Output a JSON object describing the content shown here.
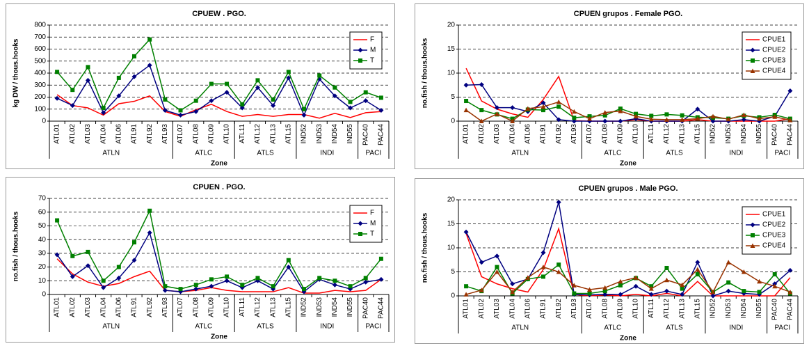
{
  "chart_data": [
    {
      "type": "line",
      "title": "CPUEW . PGO.",
      "x_label": "Zone",
      "y_label": "kg DW / thous.hooks",
      "groups": [
        {
          "name": "ATLN",
          "categories": [
            "ATL01",
            "ATL02",
            "ATL03",
            "ATL04",
            "ATL06",
            "ATL91",
            "ATL92",
            "ATL93"
          ]
        },
        {
          "name": "ATLC",
          "categories": [
            "ATL07",
            "ATL08",
            "ATL09",
            "ATL10"
          ]
        },
        {
          "name": "ATLS",
          "categories": [
            "ATL11",
            "ATL12",
            "ATL13",
            "ATL15"
          ]
        },
        {
          "name": "INDI",
          "categories": [
            "IND52",
            "IND53",
            "IND54",
            "IND55"
          ]
        },
        {
          "name": "PACI",
          "categories": [
            "PAC40",
            "PAC44"
          ]
        }
      ],
      "ylim": [
        0,
        800
      ],
      "yticks": [
        0,
        100,
        200,
        300,
        400,
        500,
        600,
        700,
        800
      ],
      "grid": true,
      "legend": "upper right",
      "series": [
        {
          "name": "F",
          "color": "#ff0000",
          "marker": "none",
          "values": [
            220,
            130,
            110,
            50,
            145,
            165,
            210,
            80,
            40,
            95,
            140,
            80,
            40,
            55,
            40,
            55,
            55,
            25,
            65,
            30,
            70,
            80
          ]
        },
        {
          "name": "M",
          "color": "#000080",
          "marker": "diamond",
          "values": [
            190,
            130,
            340,
            70,
            210,
            370,
            465,
            90,
            50,
            80,
            170,
            240,
            110,
            280,
            130,
            360,
            50,
            350,
            210,
            110,
            170,
            90
          ]
        },
        {
          "name": "T",
          "color": "#008000",
          "marker": "square",
          "values": [
            410,
            260,
            450,
            110,
            360,
            540,
            680,
            180,
            90,
            170,
            310,
            310,
            140,
            340,
            180,
            410,
            100,
            380,
            280,
            160,
            240,
            195
          ]
        }
      ]
    },
    {
      "type": "line",
      "title": "CPUEN grupos . Female PGO.",
      "x_label": "Zone",
      "y_label": "no.fish / thous.hooks",
      "groups": [
        {
          "name": "ATLN",
          "categories": [
            "ATL01",
            "ATL02",
            "ATL03",
            "ATL04",
            "ATL06",
            "ATL91",
            "ATL92",
            "ATL93"
          ]
        },
        {
          "name": "ATLC",
          "categories": [
            "ATL07",
            "ATL08",
            "ATL09",
            "ATL10"
          ]
        },
        {
          "name": "ATLS",
          "categories": [
            "ATL11",
            "ATL12",
            "ATL13",
            "ATL15"
          ]
        },
        {
          "name": "INDI",
          "categories": [
            "IND52",
            "IND53",
            "IND54",
            "IND55"
          ]
        },
        {
          "name": "PACI",
          "categories": [
            "PAC40",
            "PAC44"
          ]
        }
      ],
      "ylim": [
        0,
        20
      ],
      "yticks": [
        0,
        5,
        10,
        15,
        20
      ],
      "grid": true,
      "legend": "upper right",
      "series": [
        {
          "name": "CPUE1",
          "color": "#ff0000",
          "marker": "none",
          "values": [
            11,
            4.2,
            2.5,
            1.5,
            0.8,
            4.5,
            9.3,
            0.1,
            0,
            0,
            0,
            0.3,
            0,
            0,
            0,
            0.3,
            0,
            0,
            0,
            0,
            0,
            0.5
          ]
        },
        {
          "name": "CPUE2",
          "color": "#000080",
          "marker": "diamond",
          "values": [
            7.5,
            7.6,
            2.8,
            2.8,
            2,
            3.8,
            0.3,
            0,
            0,
            0,
            0,
            0.5,
            0,
            0,
            0,
            2.5,
            0,
            0,
            0.3,
            0,
            1,
            6.3
          ]
        },
        {
          "name": "CPUE3",
          "color": "#008000",
          "marker": "square",
          "values": [
            4.2,
            2.3,
            1.4,
            0.5,
            2.4,
            2.3,
            3,
            0.7,
            1,
            1.2,
            2.6,
            1.5,
            1.1,
            1.4,
            1.2,
            0.8,
            0.7,
            0.5,
            1.1,
            0.8,
            1.3,
            0.5
          ]
        },
        {
          "name": "CPUE4",
          "color": "#993300",
          "marker": "triangle",
          "values": [
            2.3,
            0,
            1.5,
            0,
            2.6,
            3,
            4,
            2,
            0.5,
            1.8,
            2.1,
            1,
            0.4,
            0.3,
            0.3,
            0.5,
            1,
            0.4,
            1.3,
            0.5,
            0.9,
            0.2
          ]
        }
      ]
    },
    {
      "type": "line",
      "title": "CPUEN . PGO.",
      "x_label": "Zone",
      "y_label": "no.fish / thous.hooks",
      "groups": [
        {
          "name": "ATLN",
          "categories": [
            "ATL01",
            "ATL02",
            "ATL03",
            "ATL04",
            "ATL06",
            "ATL91",
            "ATL92",
            "ATL93"
          ]
        },
        {
          "name": "ATLC",
          "categories": [
            "ATL07",
            "ATL08",
            "ATL09",
            "ATL10"
          ]
        },
        {
          "name": "ATLS",
          "categories": [
            "ATL11",
            "ATL12",
            "ATL13",
            "ATL15"
          ]
        },
        {
          "name": "INDI",
          "categories": [
            "IND52",
            "IND53",
            "IND54",
            "IND55"
          ]
        },
        {
          "name": "PACI",
          "categories": [
            "PAC40",
            "PAC44"
          ]
        }
      ],
      "ylim": [
        0,
        70
      ],
      "yticks": [
        0,
        10,
        20,
        30,
        40,
        50,
        60,
        70
      ],
      "grid": true,
      "legend": "upper right",
      "series": [
        {
          "name": "F",
          "color": "#ff0000",
          "marker": "none",
          "values": [
            26,
            15,
            9,
            6,
            8,
            13,
            17,
            3,
            2,
            3,
            5,
            3,
            2,
            2,
            2,
            5,
            1,
            1,
            3,
            2,
            3,
            11
          ]
        },
        {
          "name": "M",
          "color": "#000080",
          "marker": "diamond",
          "values": [
            29,
            13,
            21,
            5,
            12,
            25,
            45,
            3,
            2,
            4,
            6,
            10,
            5,
            10,
            4,
            20,
            2,
            11,
            7,
            4,
            9,
            11
          ]
        },
        {
          "name": "T",
          "color": "#008000",
          "marker": "square",
          "values": [
            54,
            28,
            31,
            10,
            20,
            38,
            61,
            6,
            4,
            7,
            11,
            13,
            7,
            12,
            6,
            25,
            4,
            12,
            10,
            6,
            12,
            26
          ]
        }
      ]
    },
    {
      "type": "line",
      "title": "CPUEN grupos . Male PGO.",
      "x_label": "Zone",
      "y_label": "no.fish / thous.hooks",
      "groups": [
        {
          "name": "ATLN",
          "categories": [
            "ATL01",
            "ATL02",
            "ATL03",
            "ATL04",
            "ATL06",
            "ATL91",
            "ATL92",
            "ATL93"
          ]
        },
        {
          "name": "ATLC",
          "categories": [
            "ATL07",
            "ATL08",
            "ATL09",
            "ATL10"
          ]
        },
        {
          "name": "ATLS",
          "categories": [
            "ATL11",
            "ATL12",
            "ATL13",
            "ATL15"
          ]
        },
        {
          "name": "INDI",
          "categories": [
            "IND52",
            "IND53",
            "IND54",
            "IND55"
          ]
        },
        {
          "name": "PACI",
          "categories": [
            "PAC40",
            "PAC44"
          ]
        }
      ],
      "ylim": [
        0,
        20
      ],
      "yticks": [
        0,
        5,
        10,
        15,
        20
      ],
      "grid": true,
      "legend": "upper right",
      "series": [
        {
          "name": "CPUE1",
          "color": "#ff0000",
          "marker": "none",
          "values": [
            13,
            4,
            2.5,
            1.5,
            0.8,
            5.5,
            14,
            0.3,
            0,
            0.2,
            0,
            0.3,
            0,
            0.5,
            0,
            3,
            0,
            0,
            0,
            0,
            0,
            3.8
          ]
        },
        {
          "name": "CPUE2",
          "color": "#000080",
          "marker": "diamond",
          "values": [
            13.3,
            7,
            8.3,
            2.5,
            3.5,
            9,
            19.5,
            0.3,
            0.2,
            0.3,
            0.3,
            2,
            0.3,
            1,
            0.3,
            7,
            0,
            1,
            0.5,
            0.3,
            2.5,
            5.3
          ]
        },
        {
          "name": "CPUE3",
          "color": "#008000",
          "marker": "square",
          "values": [
            2,
            1,
            6,
            0.5,
            3.5,
            4,
            6.5,
            0.5,
            0.5,
            1,
            2.2,
            3.7,
            2,
            5.8,
            1.5,
            4.5,
            0.8,
            2.8,
            1,
            0.8,
            4.5,
            0.5
          ]
        },
        {
          "name": "CPUE4",
          "color": "#993300",
          "marker": "triangle",
          "values": [
            0.3,
            1.2,
            5,
            0.8,
            3.8,
            6,
            5,
            2.2,
            1.3,
            1.7,
            3,
            3.8,
            1.5,
            3.3,
            2.3,
            5.5,
            0.8,
            7,
            5,
            3,
            2,
            0.8
          ]
        }
      ]
    }
  ]
}
